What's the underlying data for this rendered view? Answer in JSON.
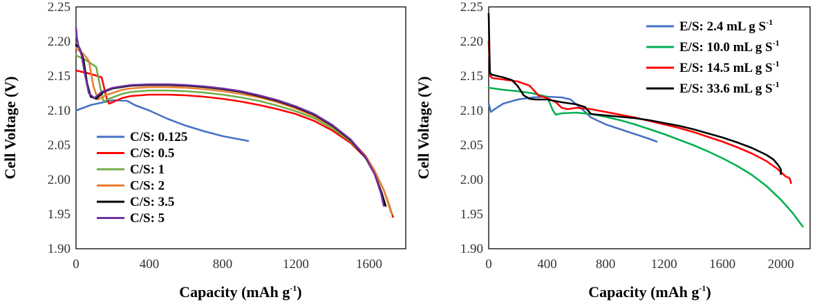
{
  "chart_data": [
    {
      "type": "line",
      "xlabel": "Capacity (mAh g",
      "xlabel_sup": "-1",
      "xlabel_end": ")",
      "ylabel": "Cell Voltage (V)",
      "xlim": [
        0,
        1800
      ],
      "ylim": [
        1.9,
        2.25
      ],
      "xticks": [
        0,
        400,
        800,
        1200,
        1600
      ],
      "xtick_labels": [
        "0",
        "400",
        "800",
        "1200",
        "1600"
      ],
      "yticks": [
        1.9,
        1.95,
        2.0,
        2.05,
        2.1,
        2.15,
        2.2,
        2.25
      ],
      "ytick_labels": [
        "1.90",
        "1.95",
        "2.00",
        "2.05",
        "2.10",
        "2.15",
        "2.20",
        "2.25"
      ],
      "grid": false,
      "legend_position": "lower-left",
      "series": [
        {
          "name": "C/S: 0.125",
          "color": "#4472C4",
          "x": [
            0,
            30,
            80,
            150,
            200,
            280,
            320,
            400,
            500,
            600,
            700,
            800,
            880,
            940
          ],
          "y": [
            2.1,
            2.103,
            2.108,
            2.112,
            2.115,
            2.114,
            2.108,
            2.1,
            2.088,
            2.078,
            2.07,
            2.063,
            2.059,
            2.056
          ]
        },
        {
          "name": "C/S: 0.5",
          "color": "#FF0000",
          "x": [
            0,
            80,
            140,
            165,
            180,
            200,
            250,
            300,
            400,
            500,
            600,
            700,
            800,
            900,
            1000,
            1100,
            1200,
            1300,
            1400,
            1500,
            1580,
            1630,
            1680,
            1710,
            1730
          ],
          "y": [
            2.158,
            2.153,
            2.148,
            2.12,
            2.11,
            2.112,
            2.118,
            2.121,
            2.123,
            2.123,
            2.122,
            2.12,
            2.117,
            2.113,
            2.108,
            2.102,
            2.095,
            2.085,
            2.071,
            2.053,
            2.032,
            2.012,
            1.985,
            1.963,
            1.946
          ]
        },
        {
          "name": "C/S: 1",
          "color": "#70AD47",
          "x": [
            0,
            60,
            110,
            135,
            150,
            180,
            250,
            300,
            400,
            500,
            600,
            700,
            800,
            900,
            1000,
            1100,
            1200,
            1300,
            1400,
            1500,
            1580,
            1630,
            1680,
            1710,
            1725
          ],
          "y": [
            2.18,
            2.172,
            2.163,
            2.13,
            2.113,
            2.117,
            2.124,
            2.127,
            2.129,
            2.129,
            2.128,
            2.126,
            2.123,
            2.119,
            2.114,
            2.107,
            2.099,
            2.089,
            2.074,
            2.055,
            2.033,
            2.012,
            1.985,
            1.963,
            1.95
          ]
        },
        {
          "name": "C/S: 2",
          "color": "#ED7D31",
          "x": [
            0,
            40,
            70,
            95,
            120,
            160,
            250,
            300,
            400,
            500,
            600,
            700,
            800,
            900,
            1000,
            1100,
            1200,
            1300,
            1400,
            1500,
            1580,
            1630,
            1680,
            1705,
            1720
          ],
          "y": [
            2.19,
            2.182,
            2.172,
            2.135,
            2.116,
            2.122,
            2.13,
            2.132,
            2.134,
            2.134,
            2.133,
            2.131,
            2.128,
            2.124,
            2.119,
            2.112,
            2.103,
            2.092,
            2.077,
            2.057,
            2.035,
            2.013,
            1.985,
            1.965,
            1.952
          ]
        },
        {
          "name": "C/S: 3.5",
          "color": "#000000",
          "x": [
            0,
            20,
            40,
            60,
            80,
            110,
            150,
            200,
            300,
            400,
            500,
            600,
            700,
            800,
            900,
            1000,
            1100,
            1200,
            1300,
            1400,
            1500,
            1580,
            1630,
            1670,
            1690
          ],
          "y": [
            2.195,
            2.19,
            2.175,
            2.14,
            2.12,
            2.117,
            2.127,
            2.132,
            2.136,
            2.137,
            2.137,
            2.136,
            2.134,
            2.131,
            2.127,
            2.121,
            2.114,
            2.105,
            2.094,
            2.078,
            2.057,
            2.032,
            2.008,
            1.98,
            1.962
          ]
        },
        {
          "name": "C/S: 5",
          "color": "#7030A0",
          "x": [
            0,
            5,
            12,
            30,
            50,
            70,
            100,
            140,
            200,
            300,
            400,
            500,
            600,
            700,
            800,
            900,
            1000,
            1100,
            1200,
            1300,
            1400,
            1500,
            1580,
            1630,
            1665,
            1680
          ],
          "y": [
            2.22,
            2.205,
            2.195,
            2.18,
            2.15,
            2.125,
            2.118,
            2.127,
            2.133,
            2.137,
            2.138,
            2.138,
            2.137,
            2.135,
            2.132,
            2.128,
            2.122,
            2.115,
            2.106,
            2.095,
            2.079,
            2.058,
            2.033,
            2.008,
            1.98,
            1.962
          ]
        }
      ]
    },
    {
      "type": "line",
      "xlabel": "Capacity (mAh g",
      "xlabel_sup": "-1",
      "xlabel_end": ")",
      "ylabel": "Cell Voltage (V)",
      "xlim": [
        0,
        2200
      ],
      "ylim": [
        1.9,
        2.25
      ],
      "xticks": [
        0,
        400,
        800,
        1200,
        1600,
        2000
      ],
      "xtick_labels": [
        "0",
        "400",
        "800",
        "1200",
        "1600",
        "2000"
      ],
      "yticks": [
        1.9,
        1.95,
        2.0,
        2.05,
        2.1,
        2.15,
        2.2,
        2.25
      ],
      "ytick_labels": [
        "1.90",
        "1.95",
        "2.00",
        "2.05",
        "2.10",
        "2.15",
        "2.20",
        "2.25"
      ],
      "grid": false,
      "legend_position": "top-right",
      "series": [
        {
          "name": "E/S: 2.4 mL g S",
          "name_sup": "-1",
          "color": "#4472C4",
          "x": [
            0,
            15,
            40,
            100,
            200,
            300,
            400,
            500,
            560,
            650,
            700,
            800,
            900,
            1000,
            1100,
            1150
          ],
          "y": [
            2.11,
            2.098,
            2.102,
            2.11,
            2.116,
            2.119,
            2.12,
            2.119,
            2.116,
            2.1,
            2.09,
            2.08,
            2.073,
            2.066,
            2.059,
            2.055
          ]
        },
        {
          "name": "E/S: 10.0 mL g S",
          "name_sup": "-1",
          "color": "#00B050",
          "x": [
            0,
            100,
            200,
            300,
            400,
            440,
            460,
            500,
            600,
            700,
            800,
            900,
            1000,
            1100,
            1200,
            1300,
            1400,
            1500,
            1600,
            1700,
            1800,
            1900,
            2000,
            2080,
            2150
          ],
          "y": [
            2.133,
            2.13,
            2.128,
            2.125,
            2.12,
            2.1,
            2.094,
            2.096,
            2.097,
            2.095,
            2.091,
            2.086,
            2.08,
            2.073,
            2.066,
            2.058,
            2.05,
            2.041,
            2.031,
            2.02,
            2.007,
            1.991,
            1.971,
            1.952,
            1.932
          ]
        },
        {
          "name": "E/S: 14.5 mL g S",
          "name_sup": "-1",
          "color": "#FF0000",
          "x": [
            0,
            10,
            25,
            100,
            200,
            280,
            340,
            400,
            460,
            500,
            540,
            600,
            700,
            800,
            900,
            1000,
            1100,
            1200,
            1300,
            1400,
            1500,
            1600,
            1700,
            1800,
            1900,
            1980,
            2030,
            2060,
            2070
          ],
          "y": [
            2.2,
            2.15,
            2.147,
            2.145,
            2.142,
            2.136,
            2.122,
            2.118,
            2.112,
            2.104,
            2.102,
            2.104,
            2.102,
            2.098,
            2.094,
            2.09,
            2.085,
            2.08,
            2.075,
            2.069,
            2.062,
            2.055,
            2.047,
            2.038,
            2.027,
            2.015,
            2.005,
            2.002,
            1.995
          ]
        },
        {
          "name": "E/S: 33.6 mL g S",
          "name_sup": "-1",
          "color": "#000000",
          "x": [
            0,
            8,
            20,
            100,
            160,
            200,
            240,
            280,
            320,
            400,
            500,
            600,
            660,
            700,
            800,
            900,
            1000,
            1100,
            1200,
            1300,
            1400,
            1500,
            1600,
            1700,
            1800,
            1900,
            1950,
            1985,
            2000,
            2000
          ],
          "y": [
            2.24,
            2.155,
            2.152,
            2.148,
            2.144,
            2.135,
            2.122,
            2.117,
            2.116,
            2.116,
            2.112,
            2.109,
            2.105,
            2.095,
            2.093,
            2.091,
            2.089,
            2.086,
            2.082,
            2.078,
            2.073,
            2.067,
            2.061,
            2.054,
            2.046,
            2.036,
            2.029,
            2.02,
            2.015,
            2.008
          ]
        }
      ]
    }
  ]
}
